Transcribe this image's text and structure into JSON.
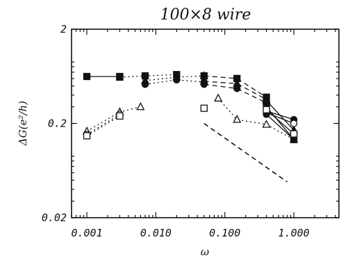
{
  "chart_data": {
    "type": "line",
    "title": "100×8 wire",
    "xlabel": "ω",
    "ylabel": "ΔG(e²/h)",
    "xscale": "log",
    "yscale": "log",
    "xlim": [
      0.0006,
      4.5
    ],
    "ylim": [
      0.02,
      2
    ],
    "xticks": [
      0.001,
      0.01,
      0.1,
      1
    ],
    "xtick_labels": [
      "0.001",
      "0.010",
      "0.100",
      "1.000"
    ],
    "yticks": [
      0.02,
      0.2,
      2
    ],
    "ytick_labels": [
      "0.02",
      "0.2",
      "2"
    ],
    "grid": false,
    "series": [
      {
        "marker": "filled-square",
        "line": "solid",
        "points": [
          [
            0.001,
            0.63
          ],
          [
            0.003,
            0.63
          ]
        ]
      },
      {
        "marker": "filled-square",
        "line": "dotted",
        "points": [
          [
            0.003,
            0.62
          ],
          [
            0.007,
            0.64
          ],
          [
            0.02,
            0.66
          ]
        ]
      },
      {
        "marker": "filled-triangle",
        "line": "dotted",
        "points": [
          [
            0.007,
            0.57
          ],
          [
            0.02,
            0.62
          ],
          [
            0.05,
            0.64
          ]
        ]
      },
      {
        "marker": "filled-circle",
        "line": "dotted",
        "points": [
          [
            0.007,
            0.52
          ],
          [
            0.02,
            0.58
          ],
          [
            0.05,
            0.55
          ]
        ]
      },
      {
        "marker": "filled-square",
        "line": "dashed",
        "points": [
          [
            0.05,
            0.64
          ],
          [
            0.15,
            0.6
          ],
          [
            0.4,
            0.38
          ]
        ]
      },
      {
        "marker": "filled-triangle",
        "line": "dashed",
        "points": [
          [
            0.05,
            0.56
          ],
          [
            0.15,
            0.53
          ],
          [
            0.4,
            0.36
          ]
        ]
      },
      {
        "marker": "filled-circle",
        "line": "dashed",
        "points": [
          [
            0.05,
            0.52
          ],
          [
            0.15,
            0.47
          ],
          [
            0.4,
            0.33
          ]
        ]
      },
      {
        "marker": "open-triangle",
        "line": "dotted",
        "points": [
          [
            0.001,
            0.165
          ],
          [
            0.003,
            0.265
          ],
          [
            0.006,
            0.3
          ]
        ]
      },
      {
        "marker": "open-circle",
        "line": "dotted",
        "points": [
          [
            0.001,
            0.153
          ],
          [
            0.003,
            0.25
          ]
        ]
      },
      {
        "marker": "open-square",
        "line": "dotted",
        "points": [
          [
            0.001,
            0.148
          ],
          [
            0.003,
            0.24
          ]
        ]
      },
      {
        "marker": "open-triangle",
        "line": "dotted",
        "points": [
          [
            0.08,
            0.37
          ],
          [
            0.15,
            0.22
          ],
          [
            0.4,
            0.195
          ],
          [
            1.0,
            0.135
          ]
        ]
      },
      {
        "marker": "open-square",
        "line": "none",
        "points": [
          [
            0.05,
            0.29
          ]
        ]
      },
      {
        "marker": "filled-triangle",
        "line": "solid",
        "points": [
          [
            0.4,
            0.35
          ],
          [
            1.0,
            0.17
          ]
        ]
      },
      {
        "marker": "filled-circle",
        "line": "solid",
        "points": [
          [
            0.4,
            0.27
          ],
          [
            1.0,
            0.22
          ]
        ]
      },
      {
        "marker": "open-circle",
        "line": "solid",
        "points": [
          [
            0.4,
            0.26
          ],
          [
            1.0,
            0.2
          ]
        ]
      },
      {
        "marker": "filled-square",
        "line": "solid",
        "points": [
          [
            0.4,
            0.3
          ],
          [
            1.0,
            0.135
          ]
        ]
      },
      {
        "marker": "filled-circle",
        "line": "solid",
        "points": [
          [
            0.4,
            0.25
          ],
          [
            1.0,
            0.135
          ]
        ]
      },
      {
        "marker": "open-square",
        "line": "solid",
        "points": [
          [
            0.4,
            0.28
          ],
          [
            1.0,
            0.155
          ]
        ]
      }
    ],
    "guide_line": {
      "line": "dashed",
      "points": [
        [
          0.05,
          0.2
        ],
        [
          0.8,
          0.048
        ]
      ]
    }
  }
}
